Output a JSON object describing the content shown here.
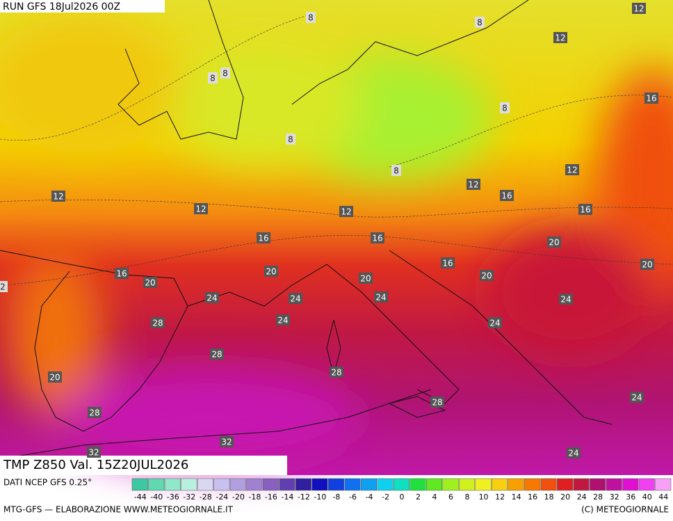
{
  "header": {
    "run": "RUN GFS 18Jul2026 00Z"
  },
  "footer": {
    "title": "TMP Z850 Val. 15Z20JUL2026",
    "source": "DATI NCEP GFS 0.25°",
    "credit": "MTG-GFS — ELABORAZIONE WWW.METEOGIORNALE.IT",
    "copyright": "(C) METEOGIORNALE"
  },
  "legend": {
    "ticks": [
      -44,
      -40,
      -36,
      -32,
      -28,
      -24,
      -20,
      -18,
      -16,
      -14,
      -12,
      -10,
      -8,
      -6,
      -4,
      -2,
      0,
      2,
      4,
      6,
      8,
      10,
      12,
      14,
      16,
      18,
      20,
      24,
      28,
      32,
      36,
      40,
      44
    ],
    "colors": [
      "#3cc8a0",
      "#60d8b0",
      "#90e8c8",
      "#b8f0e0",
      "#d8d8f0",
      "#c8c0f0",
      "#b0a0e0",
      "#a080d0",
      "#8860c0",
      "#6040b0",
      "#3020a0",
      "#1010c0",
      "#1040e0",
      "#1070f0",
      "#10a0f0",
      "#10d0f0",
      "#10e0c0",
      "#20e040",
      "#60e820",
      "#a0f020",
      "#d0f020",
      "#f0f020",
      "#f8d010",
      "#f8a000",
      "#f87800",
      "#f05010",
      "#e02020",
      "#c01840",
      "#b01070",
      "#c010a0",
      "#e010d0",
      "#f040f0",
      "#f8a0f8"
    ]
  },
  "contour_labels": [
    8,
    8,
    12,
    12,
    8,
    8,
    16,
    8,
    8,
    8,
    12,
    12,
    12,
    12,
    16,
    12,
    16,
    16,
    16,
    20,
    20,
    16,
    20,
    16,
    20,
    20,
    20,
    2,
    24,
    24,
    24,
    24,
    24,
    24,
    28,
    28,
    28,
    20,
    24,
    28,
    28,
    32,
    32,
    24
  ]
}
